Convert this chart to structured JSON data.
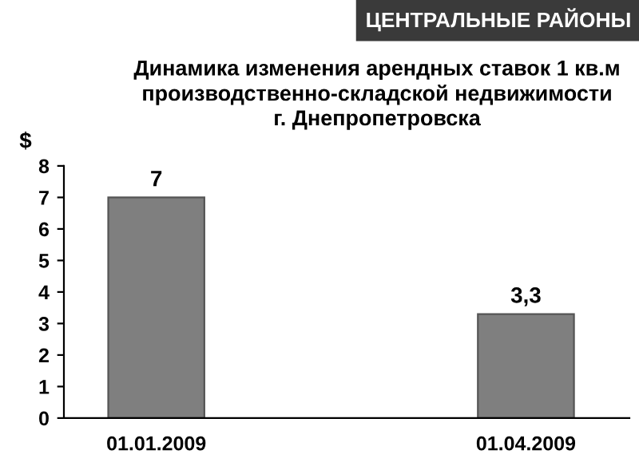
{
  "chart_data": {
    "type": "bar",
    "title": "ЦЕНТРАЛЬНЫЕ РАЙОНЫ",
    "subtitle": "Динамика изменения арендных ставок 1 кв.м\nпроизводственно-складской недвижимости\nг. Днепропетровска",
    "ylabel": "$",
    "categories": [
      "01.01.2009",
      "01.04.2009"
    ],
    "values": [
      7,
      3.3
    ],
    "value_labels": [
      "7",
      "3,3"
    ],
    "color": "#7f7f7f",
    "ylim": [
      0,
      8
    ],
    "yticks": [
      0,
      1,
      2,
      3,
      4,
      5,
      6,
      7,
      8
    ],
    "grid": false,
    "legend": false
  }
}
